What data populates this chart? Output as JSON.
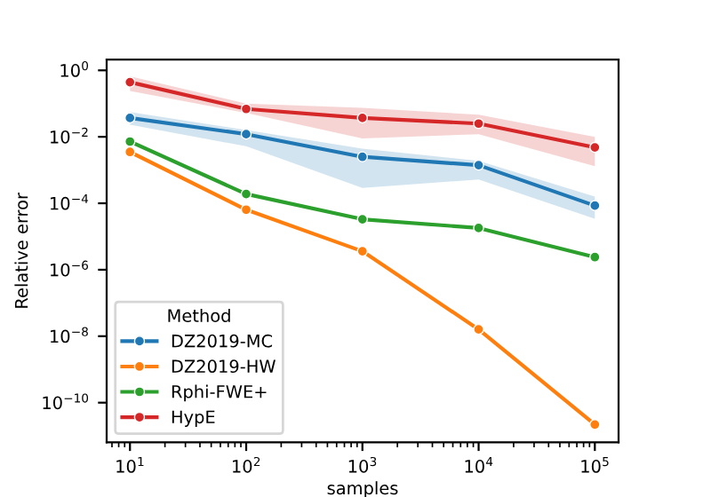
{
  "chart_data": {
    "type": "line",
    "xlabel": "samples",
    "ylabel": "Relative error",
    "legend_title": "Method",
    "legend": "bottom left",
    "marker": "circle",
    "line_style": "solid",
    "log": "xy",
    "grid": false,
    "x": [
      10,
      100,
      1000,
      10000,
      100000
    ],
    "xlim": [
      6.3,
      160000
    ],
    "ylim": [
      6.4e-12,
      2.1
    ],
    "xticks": [
      {
        "value": 10,
        "label": "10$^{1}$"
      },
      {
        "value": 100,
        "label": "10$^{2}$"
      },
      {
        "value": 1000,
        "label": "10$^{3}$"
      },
      {
        "value": 10000,
        "label": "10$^{4}$"
      },
      {
        "value": 100000,
        "label": "10$^{5}$"
      }
    ],
    "yticks": [
      {
        "value": 1e-10,
        "label": "10$^{−10}$"
      },
      {
        "value": 1e-08,
        "label": "10$^{−8}$"
      },
      {
        "value": 1e-06,
        "label": "10$^{−6}$"
      },
      {
        "value": 0.0001,
        "label": "10$^{−4}$"
      },
      {
        "value": 0.01,
        "label": "10$^{−2}$"
      },
      {
        "value": 1,
        "label": "10$^{0}$"
      }
    ],
    "series": [
      {
        "name": "DZ2019-MC",
        "color": "#1f77b4",
        "values": [
          0.037,
          0.012,
          0.0025,
          0.0014,
          8.5e-05
        ],
        "lower": [
          0.023,
          0.0052,
          0.00029,
          0.00052,
          3.4e-05
        ],
        "upper": [
          0.056,
          0.016,
          0.0044,
          0.0019,
          0.00016
        ]
      },
      {
        "name": "DZ2019-HW",
        "color": "#ff7f0e",
        "values": [
          0.0035,
          6.4e-05,
          3.6e-06,
          1.6e-08,
          2.2e-11
        ]
      },
      {
        "name": "Rphi-FWE+",
        "color": "#2ca02c",
        "values": [
          0.0072,
          0.00019,
          3.3e-05,
          1.8e-05,
          2.4e-06
        ]
      },
      {
        "name": "HypE",
        "color": "#d62728",
        "values": [
          0.44,
          0.069,
          0.037,
          0.025,
          0.0048
        ],
        "lower": [
          0.24,
          0.052,
          0.0089,
          0.012,
          0.0013
        ],
        "upper": [
          0.66,
          0.1,
          0.075,
          0.046,
          0.01
        ]
      }
    ]
  }
}
